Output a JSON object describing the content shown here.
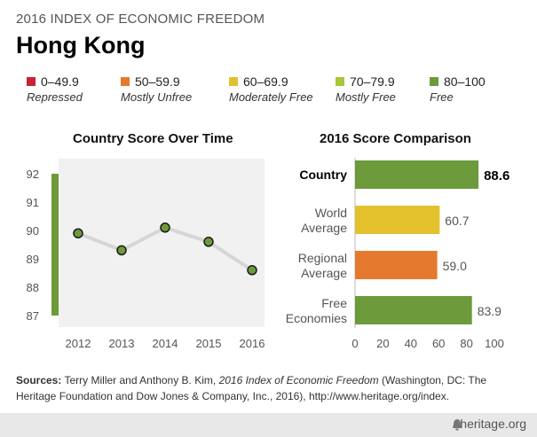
{
  "header": {
    "kicker": "2016 INDEX OF ECONOMIC FREEDOM",
    "title": "Hong Kong"
  },
  "legend": [
    {
      "range": "0–49.9",
      "label": "Repressed",
      "color": "#c8213a"
    },
    {
      "range": "50–59.9",
      "label": "Mostly Unfree",
      "color": "#e57a2e"
    },
    {
      "range": "60–69.9",
      "label": "Moderately Free",
      "color": "#e3c12d"
    },
    {
      "range": "70–79.9",
      "label": "Mostly Free",
      "color": "#a8c63a"
    },
    {
      "range": "80–100",
      "label": "Free",
      "color": "#6d9a3a"
    }
  ],
  "chart_data": [
    {
      "type": "line",
      "title": "Country Score Over Time",
      "x": [
        "2012",
        "2013",
        "2014",
        "2015",
        "2016"
      ],
      "values": [
        89.9,
        89.3,
        90.1,
        89.6,
        88.6
      ],
      "ylim": [
        87,
        92
      ],
      "yticks": [
        "87",
        "88",
        "89",
        "90",
        "91",
        "92"
      ],
      "band_color": "#6d9a3a",
      "line_color": "#d6d6d6",
      "point_color": "#6d9a3a",
      "plot_background": "#f1f1f1"
    },
    {
      "type": "bar",
      "orientation": "horizontal",
      "title": "2016 Score Comparison",
      "categories": [
        "Country",
        "World Average",
        "Regional Average",
        "Free Economies"
      ],
      "values": [
        88.6,
        60.7,
        59.0,
        83.9
      ],
      "value_labels": [
        "88.6",
        "60.7",
        "59.0",
        "83.9"
      ],
      "colors": [
        "#6d9a3a",
        "#e3c12d",
        "#e57a2e",
        "#6d9a3a"
      ],
      "xlim": [
        0,
        100
      ],
      "xticks": [
        "0",
        "20",
        "40",
        "60",
        "80",
        "100"
      ]
    }
  ],
  "sources": {
    "label": "Sources:",
    "authors": "Terry Miller and Anthony B. Kim,",
    "book": "2016 Index of Economic Freedom",
    "rest": "(Washington, DC: The Heritage Foundation and Dow Jones & Company, Inc., 2016), http://www.heritage.org/index."
  },
  "footer": {
    "site": "heritage.org",
    "icon": "bell-icon"
  }
}
